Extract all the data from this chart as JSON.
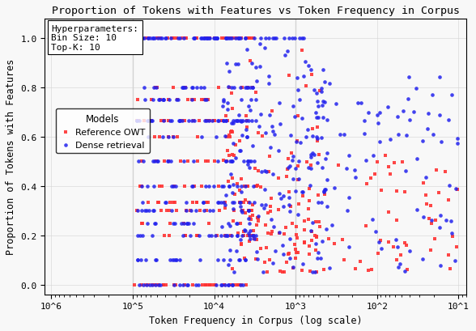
{
  "title": "Proportion of Tokens with Features vs Token Frequency in Corpus",
  "xlabel": "Token Frequency in Corpus (log scale)",
  "ylabel": "Proportion of Tokens with Features",
  "hyperparams_text": "Hyperparameters:\nBin Size: 10\nTop-K: 10",
  "legend_title": "Models",
  "legend_labels": [
    "Reference OWT",
    "Dense retrieval"
  ],
  "red_color": "#FF3333",
  "blue_color": "#2222EE",
  "background_color": "#F8F8F8",
  "ylim": [
    -0.04,
    1.08
  ],
  "xticks": [
    1000000,
    100000,
    10000,
    1000,
    100,
    10
  ],
  "xtick_labels": [
    "10^6",
    "10^5",
    "10^4",
    "10^3",
    "10^2",
    "10^1"
  ],
  "yticks": [
    0,
    0.2,
    0.4,
    0.6,
    0.8,
    1.0
  ]
}
